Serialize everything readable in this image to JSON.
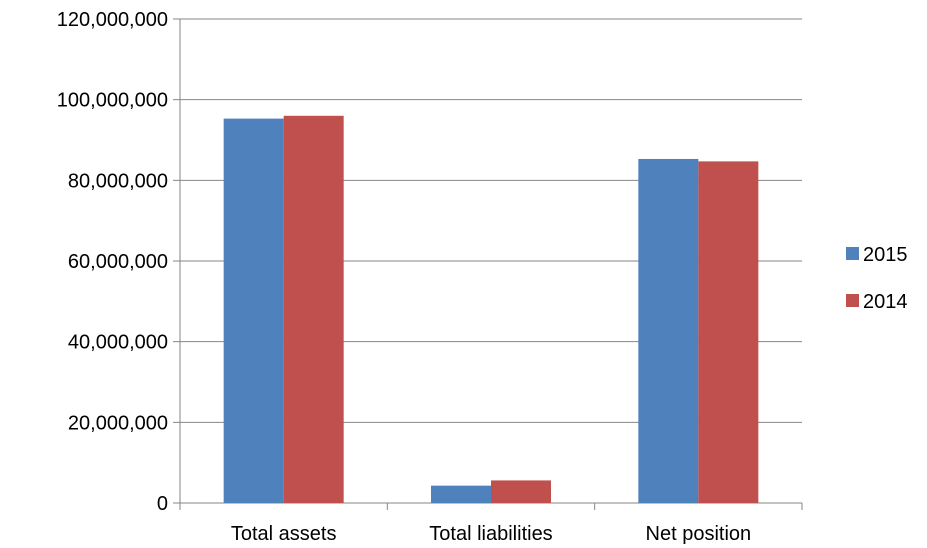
{
  "chart_data": {
    "type": "bar",
    "categories": [
      "Total assets",
      "Total liabilities",
      "Net position"
    ],
    "series": [
      {
        "name": "2015",
        "color": "#4F81BD",
        "values": [
          95300000,
          4300000,
          85300000
        ]
      },
      {
        "name": "2014",
        "color": "#C0504D",
        "values": [
          96000000,
          5600000,
          84700000
        ]
      }
    ],
    "y_ticks": [
      "0",
      "20,000,000",
      "40,000,000",
      "60,000,000",
      "80,000,000",
      "100,000,000",
      "120,000,000"
    ],
    "ylim": [
      0,
      120000000
    ],
    "y_tick_step": 20000000,
    "grid": true,
    "legend_position": "right",
    "gridline_color": "#868686"
  }
}
